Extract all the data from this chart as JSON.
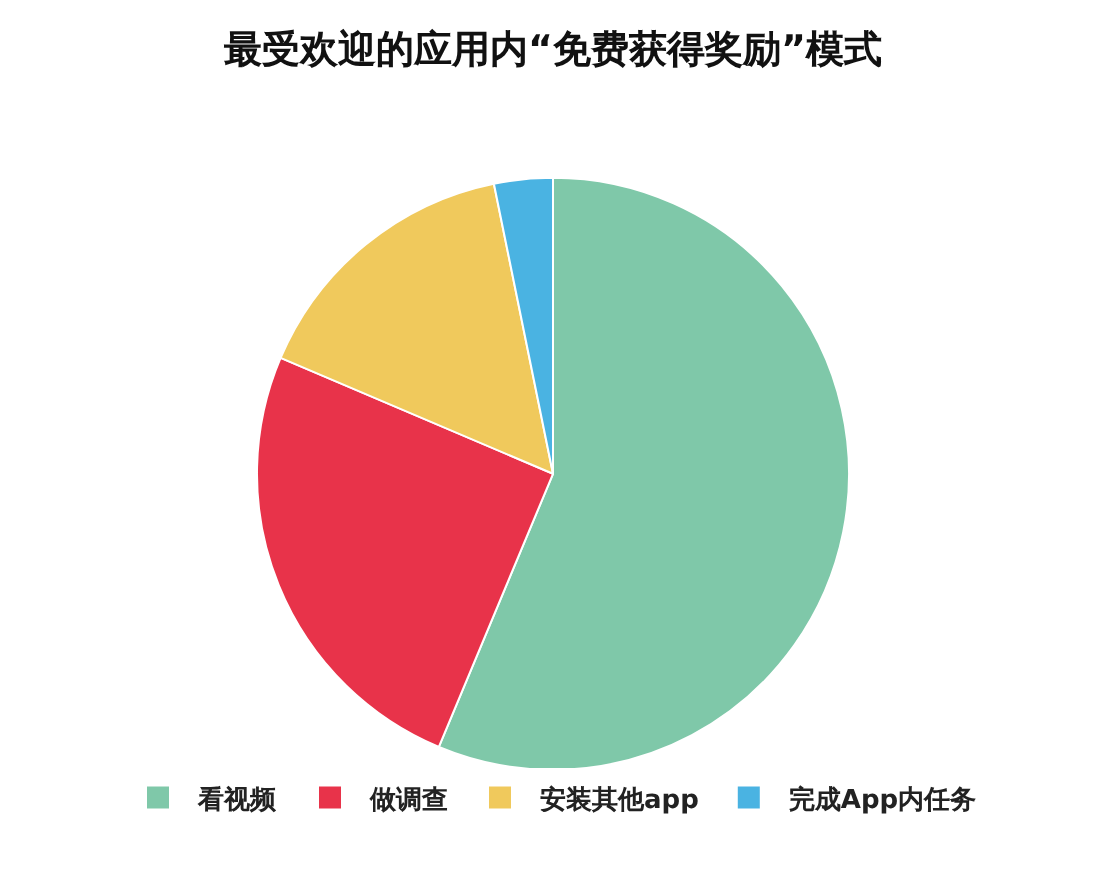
{
  "chart_data": {
    "type": "pie",
    "title": "最受欢迎的应用内“免费获得奖励”模式",
    "categories": [
      "看视频",
      "做调查",
      "安装其他app",
      "完成App内任务"
    ],
    "values": [
      56.3,
      25.1,
      15.4,
      3.2
    ],
    "colors": [
      "#7fc8a9",
      "#e8334a",
      "#f0c95c",
      "#4ab3e2"
    ],
    "legend": "bottom"
  }
}
